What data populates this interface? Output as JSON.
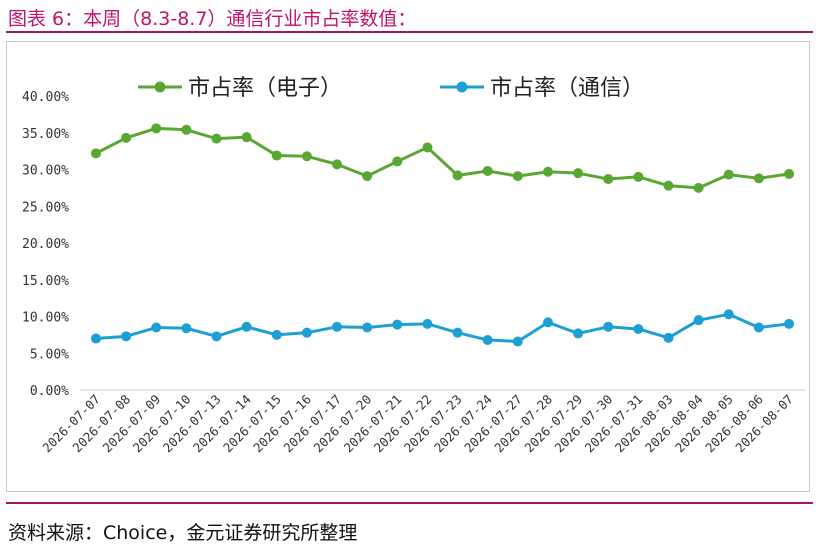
{
  "header": {
    "title": "图表 6：本周（8.3-8.7）通信行业市占率数值："
  },
  "footer": {
    "source": "资料来源：Choice，金元证券研究所整理"
  },
  "colors": {
    "electronics": "#5aa632",
    "telecom": "#1e9fd4",
    "accent": "#a3185f"
  },
  "chart_data": {
    "type": "line",
    "title": "",
    "xlabel": "",
    "ylabel": "",
    "ylim": [
      0,
      40
    ],
    "yticks": [
      "0.00%",
      "5.00%",
      "10.00%",
      "15.00%",
      "20.00%",
      "25.00%",
      "30.00%",
      "35.00%",
      "40.00%"
    ],
    "legend_position": "top",
    "grid": false,
    "categories": [
      "2026-07-07",
      "2026-07-08",
      "2026-07-09",
      "2026-07-10",
      "2026-07-13",
      "2026-07-14",
      "2026-07-15",
      "2026-07-16",
      "2026-07-17",
      "2026-07-20",
      "2026-07-21",
      "2026-07-22",
      "2026-07-23",
      "2026-07-24",
      "2026-07-27",
      "2026-07-28",
      "2026-07-29",
      "2026-07-30",
      "2026-07-31",
      "2026-08-03",
      "2026-08-04",
      "2026-08-05",
      "2026-08-06",
      "2026-08-07"
    ],
    "series": [
      {
        "name": "市占率（电子）",
        "color": "#5aa632",
        "values": [
          32.2,
          34.3,
          35.6,
          35.4,
          34.2,
          34.4,
          31.9,
          31.8,
          30.7,
          29.1,
          31.1,
          33.0,
          29.2,
          29.8,
          29.1,
          29.7,
          29.5,
          28.7,
          29.0,
          27.8,
          27.5,
          29.3,
          28.8,
          29.4
        ]
      },
      {
        "name": "市占率（通信）",
        "color": "#1e9fd4",
        "values": [
          7.0,
          7.3,
          8.5,
          8.4,
          7.3,
          8.6,
          7.5,
          7.8,
          8.6,
          8.5,
          8.9,
          9.0,
          7.8,
          6.8,
          6.6,
          9.2,
          7.7,
          8.6,
          8.3,
          7.1,
          9.5,
          10.3,
          8.5,
          9.0
        ]
      }
    ]
  }
}
